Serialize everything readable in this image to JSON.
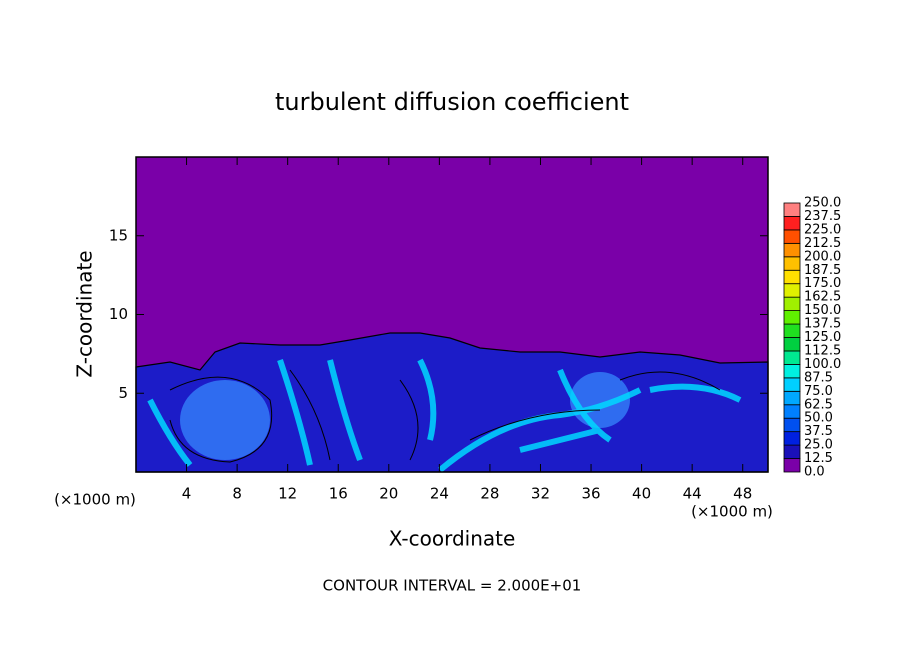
{
  "chart_data": {
    "type": "contour",
    "title": "turbulent diffusion coefficient",
    "xlabel": "X-coordinate",
    "ylabel": "Z-coordinate",
    "x_unit_labels": [
      "(×1000 m)",
      "(×1000 m)"
    ],
    "footnote": "CONTOUR INTERVAL = 2.000E+01",
    "xlim": [
      0,
      50
    ],
    "xticks": [
      4,
      8,
      12,
      16,
      20,
      24,
      28,
      32,
      36,
      40,
      44,
      48
    ],
    "ylim": [
      0,
      20
    ],
    "yticks": [
      5,
      10,
      15
    ],
    "colorbar": {
      "ticks": [
        {
          "value": 0,
          "label": "0.0"
        },
        {
          "value": 12.5,
          "label": "12.5"
        },
        {
          "value": 25,
          "label": "25.0"
        },
        {
          "value": 37.5,
          "label": "37.5"
        },
        {
          "value": 50,
          "label": "50.0"
        },
        {
          "value": 62.5,
          "label": "62.5"
        },
        {
          "value": 75,
          "label": "75.0"
        },
        {
          "value": 87.5,
          "label": "87.5"
        },
        {
          "value": 100,
          "label": "100.0"
        },
        {
          "value": 112.5,
          "label": "112.5"
        },
        {
          "value": 125,
          "label": "125.0"
        },
        {
          "value": 137.5,
          "label": "137.5"
        },
        {
          "value": 150,
          "label": "150.0"
        },
        {
          "value": 162.5,
          "label": "162.5"
        },
        {
          "value": 175,
          "label": "175.0"
        },
        {
          "value": 187.5,
          "label": "187.5"
        },
        {
          "value": 200,
          "label": "200.0"
        },
        {
          "value": 212.5,
          "label": "212.5"
        },
        {
          "value": 225,
          "label": "225.0"
        },
        {
          "value": 237.5,
          "label": "237.5"
        },
        {
          "value": 250,
          "label": "250.0"
        }
      ],
      "colors": [
        "#7a00a8",
        "#1a10b8",
        "#0020e0",
        "#0050f0",
        "#0080ff",
        "#00a8ff",
        "#00d0ff",
        "#00f0e0",
        "#00e890",
        "#00d040",
        "#20e020",
        "#60f000",
        "#a0f000",
        "#e0f000",
        "#ffe000",
        "#ffc000",
        "#ff9000",
        "#ff5000",
        "#ff2020",
        "#ff8080"
      ]
    }
  }
}
